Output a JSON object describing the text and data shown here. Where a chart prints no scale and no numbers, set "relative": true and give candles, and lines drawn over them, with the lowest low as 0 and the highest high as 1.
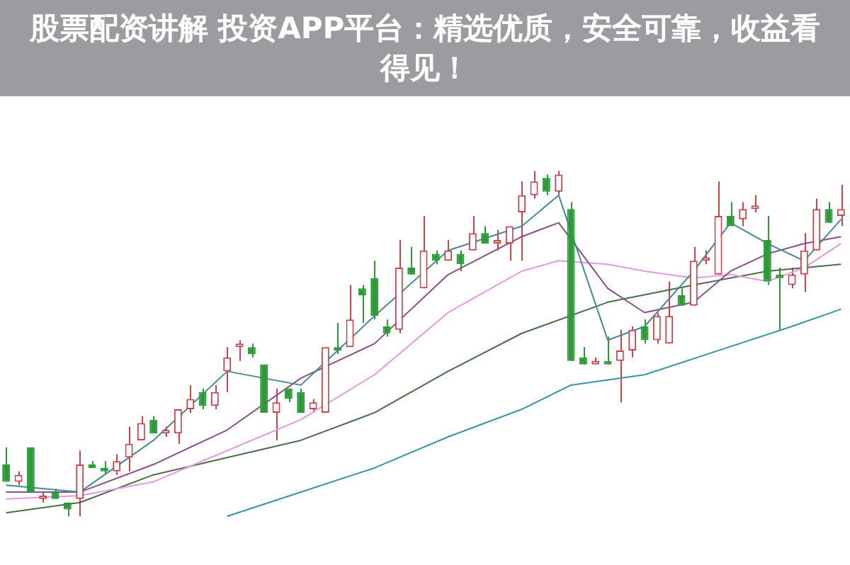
{
  "chart_data": {
    "type": "candlestick",
    "title": "股票配资讲解 投资APP平台：精选优质，安全可靠，收益看得见！",
    "relative": true,
    "legend": false,
    "categories": [
      null,
      null,
      null,
      null,
      null,
      null,
      null,
      null,
      null,
      null,
      null,
      null,
      null,
      null,
      null,
      null,
      null,
      null,
      null,
      null,
      null,
      null,
      null,
      null,
      null,
      null,
      null,
      null,
      null,
      null,
      null,
      null,
      null,
      null,
      null,
      null,
      null,
      null,
      null,
      null,
      null,
      null,
      null,
      null,
      null,
      null,
      null,
      null,
      null,
      null,
      null,
      null,
      null,
      null,
      null,
      null,
      null,
      null,
      null,
      null,
      null,
      null,
      null,
      null,
      null,
      null,
      null,
      null,
      null
    ],
    "ohlc": [
      [
        0.15,
        0.2,
        0.1,
        0.1
      ],
      [
        0.1,
        0.13,
        0.09,
        0.12
      ],
      [
        0.2,
        0.2,
        0.07,
        0.07
      ],
      [
        0.05,
        0.07,
        0.04,
        0.06
      ],
      [
        0.07,
        0.08,
        0.05,
        0.05
      ],
      [
        0.04,
        0.04,
        0,
        0.02
      ],
      [
        0.05,
        0.19,
        0,
        0.15
      ],
      [
        0.15,
        0.16,
        0.14,
        0.14
      ],
      [
        0.14,
        0.16,
        0.12,
        0.13
      ],
      [
        0.13,
        0.18,
        0.12,
        0.16
      ],
      [
        0.17,
        0.26,
        0.13,
        0.21
      ],
      [
        0.22,
        0.29,
        0.22,
        0.27
      ],
      [
        0.28,
        0.29,
        0.24,
        0.24
      ],
      [
        0.24,
        0.26,
        0.23,
        0.25
      ],
      [
        0.24,
        0.31,
        0.21,
        0.31
      ],
      [
        0.31,
        0.38,
        0.3,
        0.34
      ],
      [
        0.36,
        0.37,
        0.31,
        0.32
      ],
      [
        0.32,
        0.38,
        0.31,
        0.36
      ],
      [
        0.42,
        0.49,
        0.36,
        0.46
      ],
      [
        0.49,
        0.51,
        0.45,
        0.5
      ],
      [
        0.49,
        0.5,
        0.46,
        0.47
      ],
      [
        0.44,
        0.44,
        0.3,
        0.3
      ],
      [
        0.3,
        0.37,
        0.22,
        0.33
      ],
      [
        0.37,
        0.37,
        0.33,
        0.34
      ],
      [
        0.36,
        0.37,
        0.3,
        0.3
      ],
      [
        0.31,
        0.34,
        0.3,
        0.33
      ],
      [
        0.3,
        0.49,
        0.3,
        0.49
      ],
      [
        0.49,
        0.56,
        0.47,
        0.48
      ],
      [
        0.49,
        0.67,
        0.49,
        0.57
      ],
      [
        0.66,
        0.67,
        0.56,
        0.64
      ],
      [
        0.69,
        0.74,
        0.57,
        0.58
      ],
      [
        0.55,
        0.57,
        0.52,
        0.53
      ],
      [
        0.54,
        0.8,
        0.53,
        0.72
      ],
      [
        0.72,
        0.78,
        0.7,
        0.7
      ],
      [
        0.66,
        0.87,
        0.66,
        0.77
      ],
      [
        0.76,
        0.77,
        0.73,
        0.74
      ],
      [
        0.74,
        0.8,
        0.74,
        0.77
      ],
      [
        0.76,
        0.77,
        0.71,
        0.73
      ],
      [
        0.77,
        0.87,
        0.77,
        0.82
      ],
      [
        0.82,
        0.84,
        0.79,
        0.79
      ],
      [
        0.79,
        0.83,
        0.77,
        0.8
      ],
      [
        0.79,
        0.84,
        0.74,
        0.84
      ],
      [
        0.88,
        0.97,
        0.74,
        0.93
      ],
      [
        0.93,
        1,
        0.92,
        0.97
      ],
      [
        0.98,
        0.99,
        0.93,
        0.94
      ],
      [
        0.94,
        1,
        0.93,
        0.99
      ],
      [
        0.89,
        0.91,
        0.45,
        0.45
      ],
      [
        0.46,
        0.49,
        0.44,
        0.44
      ],
      [
        0.44,
        0.46,
        0.44,
        0.45
      ],
      [
        0.45,
        0.52,
        0.44,
        0.44
      ],
      [
        0.45,
        0.54,
        0.33,
        0.48
      ],
      [
        0.48,
        0.55,
        0.46,
        0.54
      ],
      [
        0.55,
        0.57,
        0.5,
        0.51
      ],
      [
        0.51,
        0.59,
        0.5,
        0.58
      ],
      [
        0.5,
        0.68,
        0.5,
        0.58
      ],
      [
        0.64,
        0.66,
        0.61,
        0.61
      ],
      [
        0.61,
        0.78,
        0.61,
        0.74
      ],
      [
        0.74,
        0.77,
        0.73,
        0.75
      ],
      [
        0.7,
        0.97,
        0.7,
        0.87
      ],
      [
        0.87,
        0.91,
        0.84,
        0.84
      ],
      [
        0.86,
        0.91,
        0.84,
        0.89
      ],
      [
        0.89,
        0.93,
        0.88,
        0.9
      ],
      [
        0.8,
        0.87,
        0.67,
        0.68
      ],
      [
        0.7,
        0.72,
        0.54,
        0.69
      ],
      [
        0.67,
        0.72,
        0.66,
        0.7
      ],
      [
        0.7,
        0.82,
        0.65,
        0.77
      ],
      [
        0.77,
        0.92,
        0.77,
        0.89
      ],
      [
        0.89,
        0.91,
        0.85,
        0.85
      ],
      [
        0.87,
        0.96,
        0.84,
        0.89
      ]
    ],
    "series": [
      {
        "type": "line",
        "color": "#3f8c96",
        "values": [
          0.09,
          null,
          null,
          null,
          null,
          null,
          0.07,
          null,
          null,
          null,
          null,
          null,
          0.22,
          null,
          null,
          null,
          null,
          null,
          0.42,
          null,
          null,
          null,
          null,
          null,
          0.38,
          null,
          null,
          null,
          null,
          null,
          0.58,
          null,
          null,
          null,
          null,
          null,
          0.77,
          null,
          null,
          null,
          null,
          null,
          0.84,
          null,
          null,
          0.93,
          null,
          null,
          null,
          0.51,
          null,
          null,
          0.55,
          null,
          null,
          null,
          0.71,
          null,
          null,
          0.85,
          null,
          null,
          0.79,
          null,
          null,
          0.74,
          null,
          null,
          0.86
        ]
      },
      {
        "type": "line",
        "color": "#8a4f8a",
        "values": [
          0.07,
          null,
          null,
          null,
          null,
          null,
          0.07,
          null,
          null,
          null,
          null,
          null,
          0.15,
          null,
          null,
          null,
          null,
          null,
          0.25,
          null,
          null,
          null,
          null,
          null,
          0.4,
          null,
          null,
          null,
          null,
          null,
          0.5,
          null,
          null,
          null,
          null,
          null,
          0.7,
          null,
          null,
          null,
          null,
          null,
          0.81,
          null,
          null,
          0.85,
          null,
          null,
          null,
          0.66,
          null,
          null,
          0.59,
          null,
          null,
          null,
          0.62,
          null,
          null,
          0.71,
          null,
          null,
          0.76,
          null,
          null,
          0.79,
          null,
          null,
          0.81
        ]
      },
      {
        "type": "line",
        "color": "#e39ae3",
        "values": [
          0.05,
          null,
          null,
          null,
          null,
          null,
          0.06,
          null,
          null,
          null,
          null,
          null,
          0.1,
          null,
          null,
          null,
          null,
          null,
          0.19,
          null,
          null,
          null,
          null,
          null,
          0.28,
          null,
          null,
          null,
          null,
          null,
          0.41,
          null,
          null,
          null,
          null,
          null,
          0.59,
          null,
          null,
          null,
          null,
          null,
          0.71,
          null,
          null,
          0.74,
          null,
          null,
          null,
          0.73,
          null,
          null,
          0.71,
          null,
          null,
          null,
          0.69,
          null,
          null,
          0.7,
          null,
          null,
          0.68,
          null,
          null,
          0.72,
          null,
          null,
          0.79
        ]
      },
      {
        "type": "line",
        "color": "#4a6e48",
        "values": [
          0.01,
          null,
          null,
          null,
          null,
          null,
          0.04,
          null,
          null,
          null,
          null,
          null,
          0.12,
          null,
          null,
          null,
          null,
          null,
          0.17,
          null,
          null,
          null,
          null,
          null,
          0.22,
          null,
          null,
          null,
          null,
          null,
          0.3,
          null,
          null,
          null,
          null,
          null,
          0.42,
          null,
          null,
          null,
          null,
          null,
          0.53,
          null,
          null,
          null,
          null,
          null,
          null,
          0.62,
          null,
          null,
          null,
          null,
          null,
          null,
          0.67,
          null,
          null,
          null,
          null,
          null,
          0.71,
          null,
          null,
          null,
          null,
          null,
          0.73
        ]
      },
      {
        "type": "line",
        "color": "#3a93a6",
        "values": [
          null,
          null,
          null,
          null,
          null,
          null,
          null,
          null,
          null,
          null,
          null,
          null,
          null,
          null,
          null,
          null,
          null,
          null,
          0,
          null,
          null,
          null,
          null,
          null,
          0.07,
          null,
          null,
          null,
          null,
          null,
          0.14,
          null,
          null,
          null,
          null,
          null,
          0.23,
          null,
          null,
          null,
          null,
          null,
          0.31,
          null,
          null,
          null,
          0.38,
          null,
          null,
          null,
          null,
          null,
          0.41,
          null,
          null,
          null,
          null,
          null,
          0.48,
          null,
          null,
          null,
          null,
          null,
          0.55,
          null,
          null,
          null,
          0.6
        ]
      }
    ]
  }
}
